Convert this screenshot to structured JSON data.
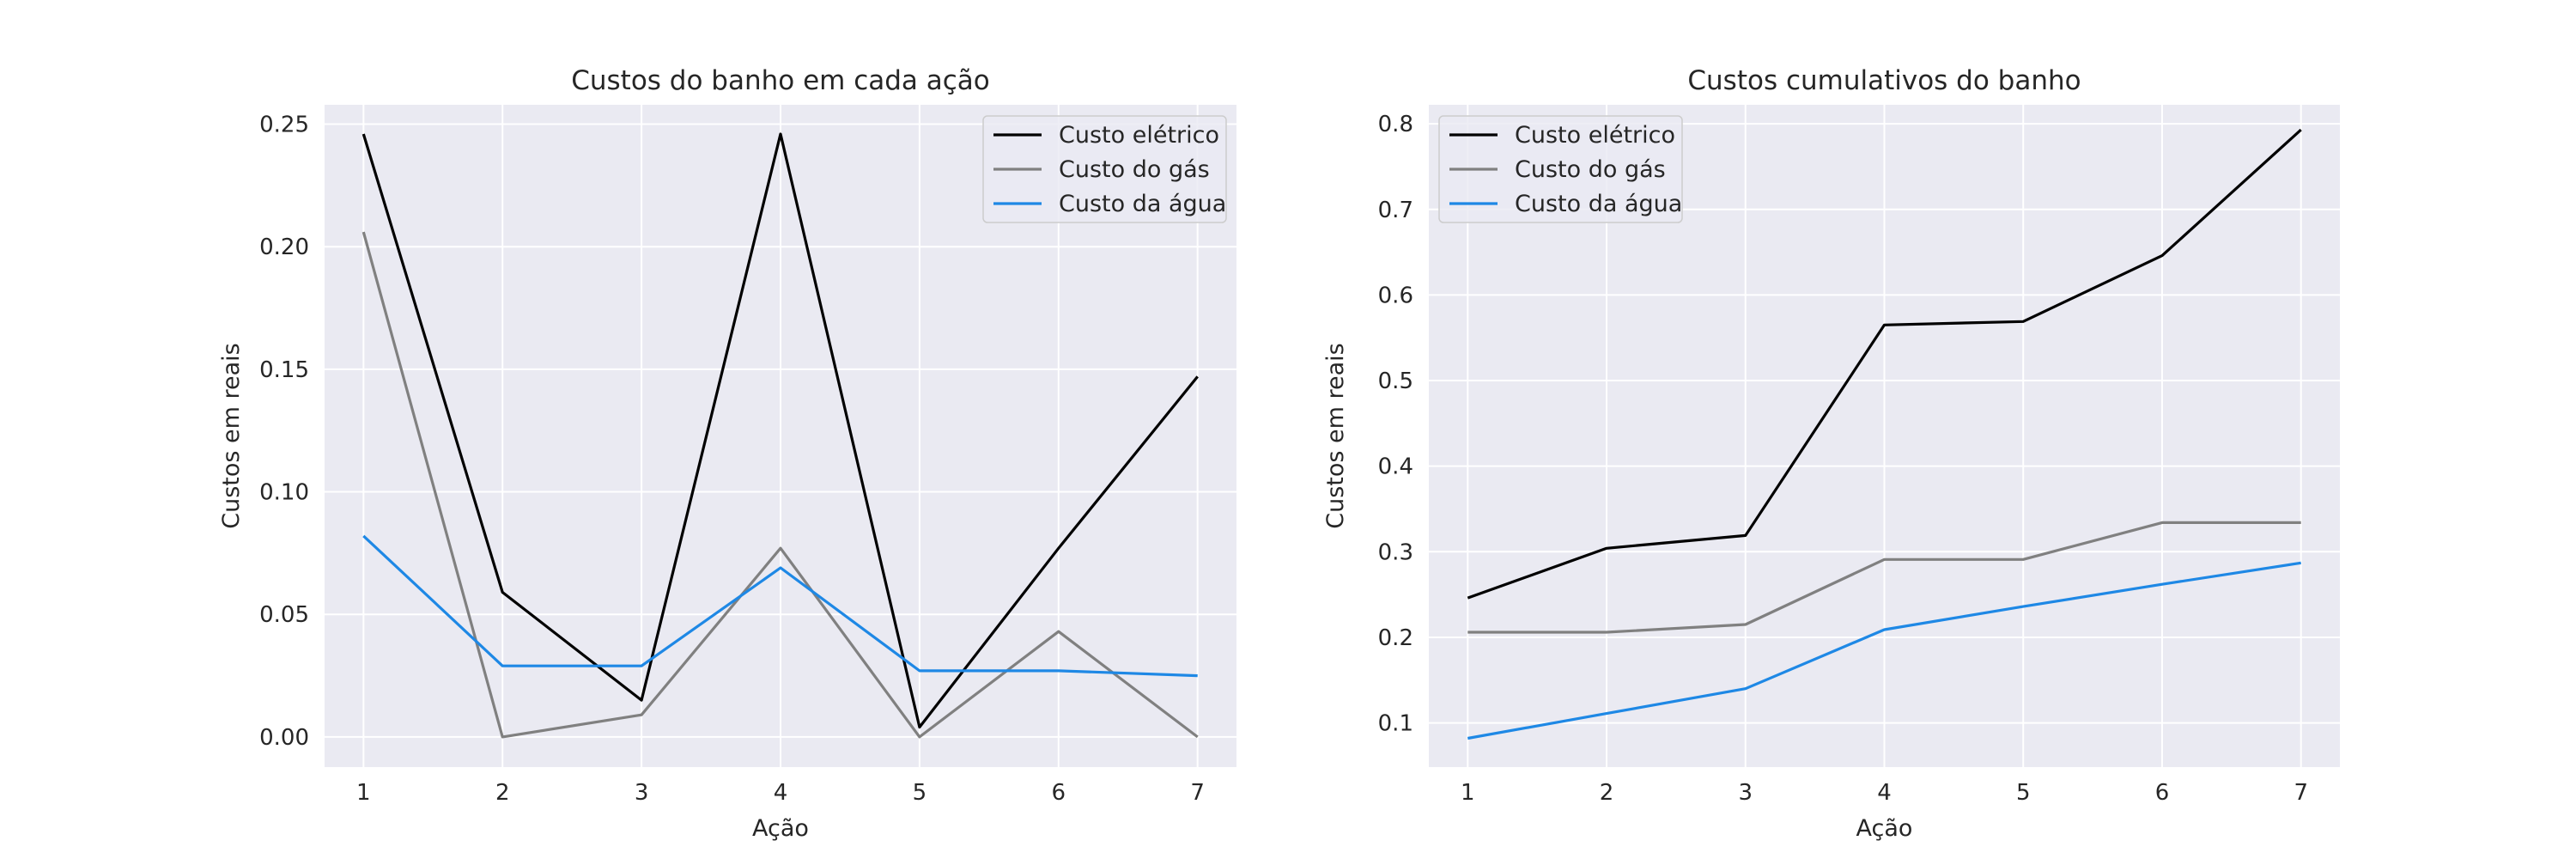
{
  "chart_data": [
    {
      "type": "line",
      "title": "Custos do banho em cada ação",
      "xlabel": "Ação",
      "ylabel": "Custos em reais",
      "x": [
        1,
        2,
        3,
        4,
        5,
        6,
        7
      ],
      "xticks": [
        "1",
        "2",
        "3",
        "4",
        "5",
        "6",
        "7"
      ],
      "xlim": [
        0.72,
        7.28
      ],
      "yticks": [
        "0.00",
        "0.05",
        "0.10",
        "0.15",
        "0.20",
        "0.25"
      ],
      "ytick_values": [
        0,
        0.05,
        0.1,
        0.15,
        0.2,
        0.25
      ],
      "ylim": [
        -0.0123,
        0.2579
      ],
      "grid": true,
      "legend_position": "top-right",
      "series": [
        {
          "name": "Custo elétrico",
          "color": "#000000",
          "values": [
            0.246,
            0.059,
            0.015,
            0.246,
            0.004,
            0.077,
            0.147
          ]
        },
        {
          "name": "Custo do gás",
          "color": "#808080",
          "values": [
            0.206,
            0.0,
            0.009,
            0.077,
            0.0,
            0.043,
            0.0
          ]
        },
        {
          "name": "Custo da água",
          "color": "#1e88e5",
          "values": [
            0.082,
            0.029,
            0.029,
            0.069,
            0.027,
            0.027,
            0.025
          ]
        }
      ]
    },
    {
      "type": "line",
      "title": "Custos cumulativos do banho",
      "xlabel": "Ação",
      "ylabel": "Custos em reais",
      "x": [
        1,
        2,
        3,
        4,
        5,
        6,
        7
      ],
      "xticks": [
        "1",
        "2",
        "3",
        "4",
        "5",
        "6",
        "7"
      ],
      "xlim": [
        0.72,
        7.28
      ],
      "yticks": [
        "0.1",
        "0.2",
        "0.3",
        "0.4",
        "0.5",
        "0.6",
        "0.7",
        "0.8"
      ],
      "ytick_values": [
        0.1,
        0.2,
        0.3,
        0.4,
        0.5,
        0.6,
        0.7,
        0.8
      ],
      "ylim": [
        0.0484,
        0.8222
      ],
      "grid": true,
      "legend_position": "top-left",
      "series": [
        {
          "name": "Custo elétrico",
          "color": "#000000",
          "values": [
            0.246,
            0.304,
            0.319,
            0.565,
            0.569,
            0.646,
            0.793
          ]
        },
        {
          "name": "Custo do gás",
          "color": "#808080",
          "values": [
            0.206,
            0.206,
            0.215,
            0.291,
            0.291,
            0.334,
            0.334
          ]
        },
        {
          "name": "Custo da água",
          "color": "#1e88e5",
          "values": [
            0.082,
            0.111,
            0.14,
            0.209,
            0.236,
            0.262,
            0.287
          ]
        }
      ]
    }
  ]
}
